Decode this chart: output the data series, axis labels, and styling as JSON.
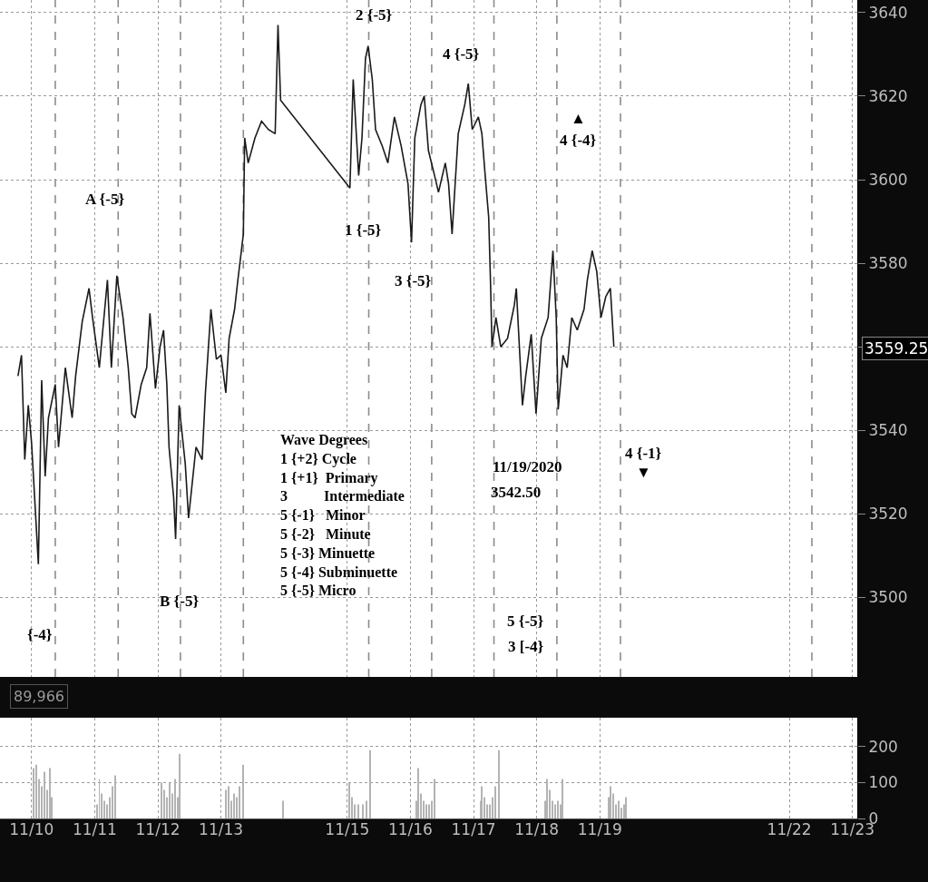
{
  "chart_data": [
    {
      "type": "line",
      "x": [
        "2020-11-09T18:50",
        "2020-11-09T20:10",
        "2020-11-09T21:25",
        "2020-11-09T22:45",
        "2020-11-10T00:00",
        "2020-11-10T02:35",
        "2020-11-10T03:50",
        "2020-11-10T05:10",
        "2020-11-10T06:25",
        "2020-11-10T09:00",
        "2020-11-10T10:15",
        "2020-11-10T12:50",
        "2020-11-10T15:25",
        "2020-11-10T16:45",
        "2020-11-10T19:15",
        "2020-11-10T21:50",
        "2020-11-10T23:10",
        "2020-11-11T01:45",
        "2020-11-11T04:50",
        "2020-11-11T06:20",
        "2020-11-11T08:25",
        "2020-11-11T10:45",
        "2020-11-11T12:45",
        "2020-11-11T14:05",
        "2020-11-11T15:20",
        "2020-11-11T17:40",
        "2020-11-11T19:45",
        "2020-11-11T21:00",
        "2020-11-11T23:05",
        "2020-11-12T00:50",
        "2020-11-12T02:10",
        "2020-11-12T03:25",
        "2020-11-12T04:15",
        "2020-11-12T06:00",
        "2020-11-12T06:45",
        "2020-11-12T08:05",
        "2020-11-12T10:25",
        "2020-11-12T11:40",
        "2020-11-12T14:30",
        "2020-11-12T16:50",
        "2020-11-12T18:05",
        "2020-11-12T20:10",
        "2020-11-12T22:15",
        "2020-11-13T00:00",
        "2020-11-13T01:50",
        "2020-11-13T03:05",
        "2020-11-13T05:10",
        "2020-11-13T06:25",
        "2020-11-13T07:45",
        "2020-11-13T08:30",
        "2020-11-13T09:00",
        "2020-11-13T10:20",
        "2020-11-13T12:55",
        "2020-11-13T15:25",
        "2020-11-13T18:00",
        "2020-11-13T20:35",
        "2020-11-13T21:40",
        "2020-11-13T22:40",
        "2020-11-15T01:00",
        "2020-11-15T02:15",
        "2020-11-15T04:20",
        "2020-11-15T05:35",
        "2020-11-15T06:55",
        "2020-11-15T07:55",
        "2020-11-15T09:30",
        "2020-11-15T10:45",
        "2020-11-15T13:20",
        "2020-11-15T15:25",
        "2020-11-15T17:55",
        "2020-11-15T20:30",
        "2020-11-15T23:05",
        "2020-11-16T00:25",
        "2020-11-16T01:40",
        "2020-11-16T04:00",
        "2020-11-16T05:15",
        "2020-11-16T06:50",
        "2020-11-16T09:10",
        "2020-11-16T10:40",
        "2020-11-16T13:15",
        "2020-11-16T14:30",
        "2020-11-16T15:50",
        "2020-11-16T18:10",
        "2020-11-16T20:40",
        "2020-11-16T22:00",
        "2020-11-16T23:30",
        "2020-11-17T01:50",
        "2020-11-17T03:10",
        "2020-11-17T04:25",
        "2020-11-17T05:45",
        "2020-11-17T06:30",
        "2020-11-17T07:00",
        "2020-11-17T08:30",
        "2020-11-17T10:20",
        "2020-11-17T12:55",
        "2020-11-17T15:30",
        "2020-11-17T16:15",
        "2020-11-17T18:35",
        "2020-11-17T19:50",
        "2020-11-17T21:55",
        "2020-11-17T23:45",
        "2020-11-18T01:45",
        "2020-11-18T04:20",
        "2020-11-18T06:10",
        "2020-11-18T07:25",
        "2020-11-18T08:10",
        "2020-11-18T10:00",
        "2020-11-18T11:35",
        "2020-11-18T13:20",
        "2020-11-18T15:25",
        "2020-11-18T18:00",
        "2020-11-18T19:15",
        "2020-11-18T21:05",
        "2020-11-18T22:50",
        "2020-11-19T00:25",
        "2020-11-19T02:15",
        "2020-11-19T04:00",
        "2020-11-19T05:20"
      ],
      "series": [
        {
          "color": "#1a1a1a",
          "values": [
            3553,
            3558,
            3533,
            3546,
            3537,
            3508,
            3552,
            3529,
            3543,
            3551,
            3536,
            3555,
            3543,
            3553,
            3566,
            3574,
            3567,
            3555,
            3576,
            3555,
            3577,
            3567,
            3555,
            3544,
            3543,
            3551,
            3555,
            3568,
            3550,
            3560,
            3564,
            3551,
            3536,
            3524,
            3514,
            3546,
            3532,
            3519,
            3536,
            3533,
            3549,
            3569,
            3557,
            3558,
            3549,
            3562,
            3569,
            3576,
            3583,
            3587,
            3610,
            3604,
            3610,
            3614,
            3612,
            3611,
            3637,
            3619,
            3598,
            3624,
            3601,
            3610,
            3629,
            3632,
            3624,
            3612,
            3608,
            3604,
            3615,
            3608,
            3599,
            3585,
            3610,
            3618,
            3620,
            3607,
            3601,
            3597,
            3604,
            3599,
            3587,
            3611,
            3618,
            3623,
            3612,
            3615,
            3611,
            3601,
            3591,
            3574,
            3560,
            3567,
            3560,
            3562,
            3570,
            3574,
            3546,
            3553,
            3563,
            3544,
            3562,
            3567,
            3583,
            3567,
            3545,
            3558,
            3555,
            3567,
            3564,
            3569,
            3576,
            3583,
            3578,
            3567,
            3572,
            3574,
            3560
          ]
        }
      ],
      "xlim": [
        "2020-11-09T12:00",
        "2020-11-23T01:50"
      ],
      "xticks": [
        {
          "value": "2020-11-10",
          "label": null
        },
        {
          "value": "2020-11-11",
          "label": null
        },
        {
          "value": "2020-11-12",
          "label": null
        },
        {
          "value": "2020-11-13",
          "label": null
        },
        {
          "value": "2020-11-15",
          "label": null
        },
        {
          "value": "2020-11-16",
          "label": null
        },
        {
          "value": "2020-11-17",
          "label": null
        },
        {
          "value": "2020-11-18",
          "label": null
        },
        {
          "value": "2020-11-19",
          "label": null
        },
        {
          "value": "2020-11-22",
          "label": null
        },
        {
          "value": "2020-11-23",
          "label": null
        }
      ],
      "ylim": [
        3481,
        3643
      ],
      "yticks": [
        3500,
        3520,
        3540,
        {
          "value": 3560,
          "label": null
        },
        3580,
        3600,
        3620,
        3640
      ],
      "grid": true,
      "tick_labels": "y",
      "ref_lines": [
        {
          "axis": "x",
          "value": "2020-11-10T09:00",
          "color": "#8c8c8c",
          "line_style": "dashed"
        },
        {
          "axis": "x",
          "value": "2020-11-11T08:55",
          "color": "#8c8c8c",
          "line_style": "dashed"
        },
        {
          "axis": "x",
          "value": "2020-11-12T08:35",
          "color": "#8c8c8c",
          "line_style": "dashed"
        },
        {
          "axis": "x",
          "value": "2020-11-13T08:30",
          "color": "#8c8c8c",
          "line_style": "dashed"
        },
        {
          "axis": "x",
          "value": "2020-11-15T08:10",
          "color": "#8c8c8c",
          "line_style": "dashed"
        },
        {
          "axis": "x",
          "value": "2020-11-16T08:05",
          "color": "#8c8c8c",
          "line_style": "dashed"
        },
        {
          "axis": "x",
          "value": "2020-11-17T07:45",
          "color": "#8c8c8c",
          "line_style": "dashed"
        },
        {
          "axis": "x",
          "value": "2020-11-18T07:40",
          "color": "#8c8c8c",
          "line_style": "dashed"
        },
        {
          "axis": "x",
          "value": "2020-11-19T07:50",
          "color": "#8c8c8c",
          "line_style": "dashed"
        },
        {
          "axis": "x",
          "value": "2020-11-22T08:35",
          "color": "#8c8c8c",
          "line_style": "dashed"
        }
      ],
      "annotations": [
        "Wave Degrees\n1 {+2} Cycle\n1 {+1}  Primary\n3          Intermediate\n5 {-1}   Minor\n5 {-2}   Minute\n5 {-3} Minuette\n5 {-4} Subminuette\n5 {-5} Micro",
        "3559.25",
        "2 {-5}",
        "4 {-5}",
        "A {-5}",
        "1 {-5}",
        "3 {-5}",
        "▲",
        "4 {-4}",
        "B {-5}",
        "{-4}",
        "4 {-1}",
        "▼",
        "11/19/2020",
        "3542.50",
        "5 {-5}",
        "3 [-4}"
      ]
    },
    {
      "type": "bar",
      "x": [
        "2020-11-10T00:45",
        "2020-11-10T01:50",
        "2020-11-10T02:50",
        "2020-11-10T03:50",
        "2020-11-10T04:55",
        "2020-11-10T05:55",
        "2020-11-10T06:55",
        "2020-11-10T07:45",
        "2020-11-11T00:55",
        "2020-11-11T01:45",
        "2020-11-11T02:45",
        "2020-11-11T03:45",
        "2020-11-11T04:50",
        "2020-11-11T05:50",
        "2020-11-11T06:50",
        "2020-11-11T07:55",
        "2020-11-12T01:25",
        "2020-11-12T02:25",
        "2020-11-12T03:25",
        "2020-11-12T04:30",
        "2020-11-12T05:30",
        "2020-11-12T06:30",
        "2020-11-12T07:35",
        "2020-11-12T08:20",
        "2020-11-13T01:50",
        "2020-11-13T02:50",
        "2020-11-13T03:55",
        "2020-11-13T04:55",
        "2020-11-13T05:55",
        "2020-11-13T07:00",
        "2020-11-13T08:15",
        "2020-11-13T23:40",
        "2020-11-15T00:45",
        "2020-11-15T01:45",
        "2020-11-15T02:45",
        "2020-11-15T04:20",
        "2020-11-15T05:50",
        "2020-11-15T07:25",
        "2020-11-15T08:40",
        "2020-11-16T02:10",
        "2020-11-16T02:55",
        "2020-11-16T04:00",
        "2020-11-16T05:00",
        "2020-11-16T06:05",
        "2020-11-16T07:05",
        "2020-11-16T08:05",
        "2020-11-16T09:10",
        "2020-11-17T02:35",
        "2020-11-17T03:10",
        "2020-11-17T04:10",
        "2020-11-17T05:10",
        "2020-11-17T06:15",
        "2020-11-17T07:15",
        "2020-11-17T08:15",
        "2020-11-17T09:35",
        "2020-11-18T03:20",
        "2020-11-18T03:50",
        "2020-11-18T04:50",
        "2020-11-18T05:55",
        "2020-11-18T06:55",
        "2020-11-18T07:55",
        "2020-11-18T09:00",
        "2020-11-18T09:45",
        "2020-11-19T03:30",
        "2020-11-19T04:00",
        "2020-11-19T05:00",
        "2020-11-19T06:05",
        "2020-11-19T07:05",
        "2020-11-19T08:10",
        "2020-11-19T09:10",
        "2020-11-19T09:55"
      ],
      "values": [
        140,
        150,
        110,
        90,
        130,
        80,
        140,
        60,
        40,
        110,
        70,
        50,
        40,
        60,
        90,
        120,
        100,
        80,
        60,
        100,
        70,
        110,
        60,
        180,
        80,
        90,
        50,
        70,
        60,
        90,
        150,
        50,
        100,
        60,
        40,
        40,
        40,
        50,
        190,
        50,
        140,
        70,
        50,
        40,
        40,
        50,
        110,
        50,
        90,
        60,
        40,
        40,
        60,
        90,
        190,
        50,
        110,
        80,
        50,
        40,
        50,
        40,
        110,
        60,
        90,
        70,
        40,
        50,
        30,
        40,
        60
      ],
      "color": "#b3b3b3",
      "xlim": [
        "2020-11-09T12:00",
        "2020-11-23T01:50"
      ],
      "xticks": [
        {
          "value": "2020-11-10",
          "label": "11/10"
        },
        {
          "value": "2020-11-11",
          "label": "11/11"
        },
        {
          "value": "2020-11-12",
          "label": "11/12"
        },
        {
          "value": "2020-11-13",
          "label": "11/13"
        },
        {
          "value": "2020-11-15",
          "label": "11/15"
        },
        {
          "value": "2020-11-16",
          "label": "11/16"
        },
        {
          "value": "2020-11-17",
          "label": "11/17"
        },
        {
          "value": "2020-11-18",
          "label": "11/18"
        },
        {
          "value": "2020-11-19",
          "label": "11/19"
        },
        {
          "value": "2020-11-22",
          "label": "11/22"
        },
        {
          "value": "2020-11-23",
          "label": "11/23"
        }
      ],
      "ylim": [
        0,
        280
      ],
      "yticks": [
        0,
        100,
        200
      ],
      "grid": true,
      "annotations": [
        "89,966"
      ]
    }
  ]
}
